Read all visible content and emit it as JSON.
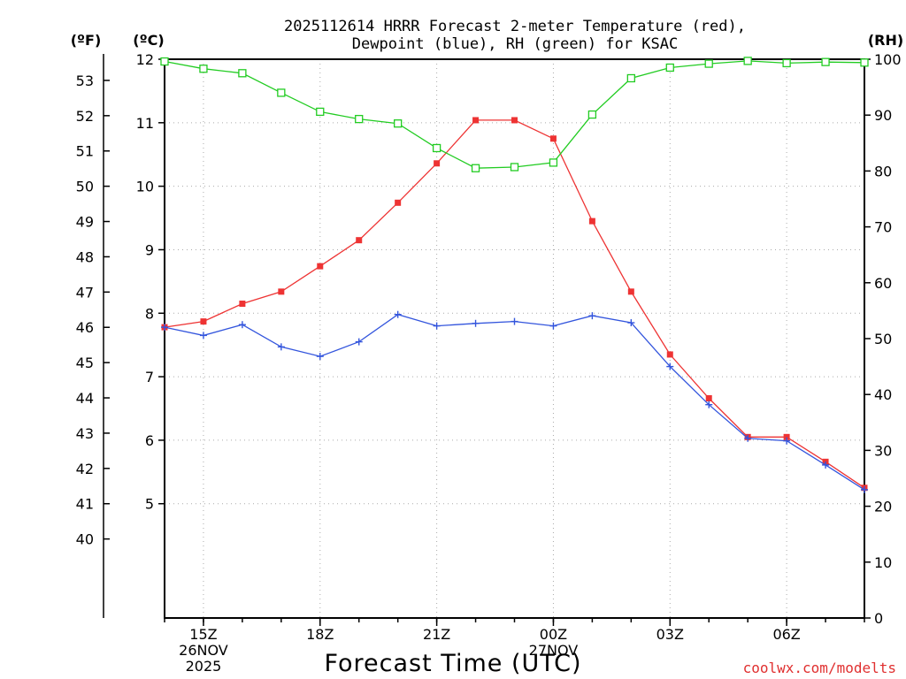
{
  "chart_data": {
    "type": "line",
    "title_line1": "2025112614 HRRR Forecast 2-meter Temperature (red),",
    "title_line2": "Dewpoint (blue), RH (green) for KSAC",
    "xlabel": "Forecast Time (UTC)",
    "credit": "coolwx.com/modelts",
    "unit_labels": {
      "fahrenheit": "(ºF)",
      "celsius": "(ºC)",
      "rh": "(RH)"
    },
    "x_hours": [
      14,
      15,
      16,
      17,
      18,
      19,
      20,
      21,
      22,
      23,
      24,
      25,
      26,
      27,
      28,
      29,
      30,
      31,
      32
    ],
    "xlim": [
      14,
      32
    ],
    "x_ticks": [
      {
        "hour": 15,
        "lines": [
          "15Z",
          "26NOV",
          "2025"
        ]
      },
      {
        "hour": 18,
        "lines": [
          "18Z"
        ]
      },
      {
        "hour": 21,
        "lines": [
          "21Z"
        ]
      },
      {
        "hour": 24,
        "lines": [
          "00Z",
          "27NOV"
        ]
      },
      {
        "hour": 27,
        "lines": [
          "03Z"
        ]
      },
      {
        "hour": 30,
        "lines": [
          "06Z"
        ]
      }
    ],
    "celsius_axis": {
      "ylim": [
        3.2,
        12
      ],
      "ticks": [
        5,
        6,
        7,
        8,
        9,
        10,
        11,
        12
      ]
    },
    "fahrenheit_ticks": [
      40,
      41,
      42,
      43,
      44,
      45,
      46,
      47,
      48,
      49,
      50,
      51,
      52,
      53
    ],
    "rh_axis": {
      "ylim": [
        0,
        100
      ],
      "ticks": [
        0,
        10,
        20,
        30,
        40,
        50,
        60,
        70,
        80,
        90,
        100
      ]
    },
    "series": [
      {
        "name": "2-meter Temperature",
        "units": "C",
        "color": "#ee3333",
        "marker": "filled-square",
        "values": [
          7.78,
          7.87,
          8.15,
          8.34,
          8.74,
          9.15,
          9.74,
          10.36,
          11.04,
          11.04,
          10.75,
          9.45,
          8.34,
          7.35,
          6.66,
          6.05,
          6.05,
          5.66,
          5.25
        ]
      },
      {
        "name": "Dewpoint",
        "units": "C",
        "color": "#3355dd",
        "marker": "plus",
        "values": [
          7.78,
          7.65,
          7.82,
          7.47,
          7.32,
          7.55,
          7.98,
          7.8,
          7.84,
          7.87,
          7.8,
          7.96,
          7.85,
          7.16,
          6.56,
          6.03,
          5.99,
          5.61,
          5.22
        ]
      },
      {
        "name": "RH",
        "units": "%",
        "color": "#22cc22",
        "marker": "open-square",
        "values": [
          99.6,
          98.3,
          97.5,
          94.0,
          90.6,
          89.3,
          88.5,
          84.1,
          80.5,
          80.7,
          81.5,
          90.1,
          96.6,
          98.5,
          99.2,
          99.7,
          99.3,
          99.5,
          99.4
        ]
      }
    ]
  }
}
